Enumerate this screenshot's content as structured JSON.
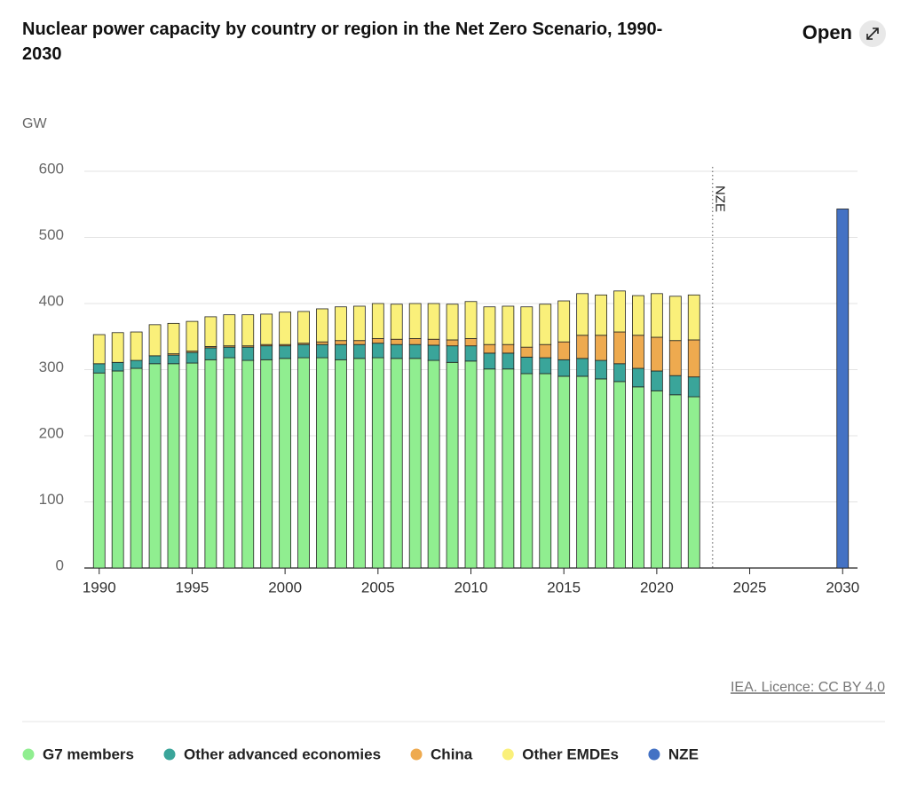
{
  "chart_data": {
    "type": "bar",
    "stacked": true,
    "title": "Nuclear power capacity by country or region in the Net Zero Scenario, 1990-2030",
    "y_label": "GW",
    "button": "Open",
    "source": "IEA. Licence: CC BY 4.0",
    "x": [
      1990,
      1991,
      1992,
      1993,
      1994,
      1995,
      1996,
      1997,
      1998,
      1999,
      2000,
      2001,
      2002,
      2003,
      2004,
      2005,
      2006,
      2007,
      2008,
      2009,
      2010,
      2011,
      2012,
      2013,
      2014,
      2015,
      2016,
      2017,
      2018,
      2019,
      2020,
      2021,
      2022,
      2030
    ],
    "series": [
      {
        "name": "G7 members",
        "color": "#90ee90",
        "values": [
          295,
          298,
          302,
          309,
          309,
          310,
          315,
          318,
          314,
          315,
          317,
          318,
          318,
          315,
          317,
          318,
          317,
          317,
          314,
          311,
          313,
          301,
          301,
          294,
          294,
          290,
          290,
          286,
          282,
          274,
          268,
          262,
          259,
          null
        ]
      },
      {
        "name": "Other advanced economies",
        "color": "#3aa59a",
        "values": [
          14,
          13,
          12,
          12,
          13,
          16,
          18,
          16,
          20,
          21,
          19,
          20,
          20,
          23,
          21,
          22,
          21,
          21,
          23,
          25,
          23,
          24,
          24,
          25,
          24,
          25,
          27,
          28,
          27,
          28,
          30,
          29,
          30,
          null
        ]
      },
      {
        "name": "China",
        "color": "#eeaa4f",
        "values": [
          0,
          0,
          0,
          0,
          2,
          2,
          2,
          2,
          2,
          2,
          2,
          2,
          4,
          6,
          6,
          7,
          8,
          9,
          9,
          9,
          11,
          13,
          13,
          15,
          20,
          27,
          35,
          38,
          48,
          50,
          51,
          53,
          56,
          null
        ]
      },
      {
        "name": "Other EMDEs",
        "color": "#faf07a",
        "values": [
          44,
          45,
          43,
          47,
          46,
          45,
          45,
          47,
          47,
          46,
          49,
          48,
          50,
          51,
          52,
          53,
          53,
          53,
          54,
          54,
          56,
          57,
          58,
          61,
          61,
          62,
          63,
          61,
          62,
          60,
          66,
          67,
          68,
          null
        ]
      },
      {
        "name": "NZE",
        "color": "#4472c4",
        "values": [
          null,
          null,
          null,
          null,
          null,
          null,
          null,
          null,
          null,
          null,
          null,
          null,
          null,
          null,
          null,
          null,
          null,
          null,
          null,
          null,
          null,
          null,
          null,
          null,
          null,
          null,
          null,
          null,
          null,
          null,
          null,
          null,
          null,
          543
        ]
      }
    ],
    "annotation": {
      "x": 2023,
      "label": "NZE"
    },
    "xlim": [
      1989.2,
      2030.8
    ],
    "xticks": [
      1990,
      1995,
      2000,
      2005,
      2010,
      2015,
      2020,
      2025,
      2030
    ],
    "ylim": [
      0,
      600
    ],
    "yticks": [
      0,
      100,
      200,
      300,
      400,
      500,
      600
    ],
    "grid": true
  }
}
